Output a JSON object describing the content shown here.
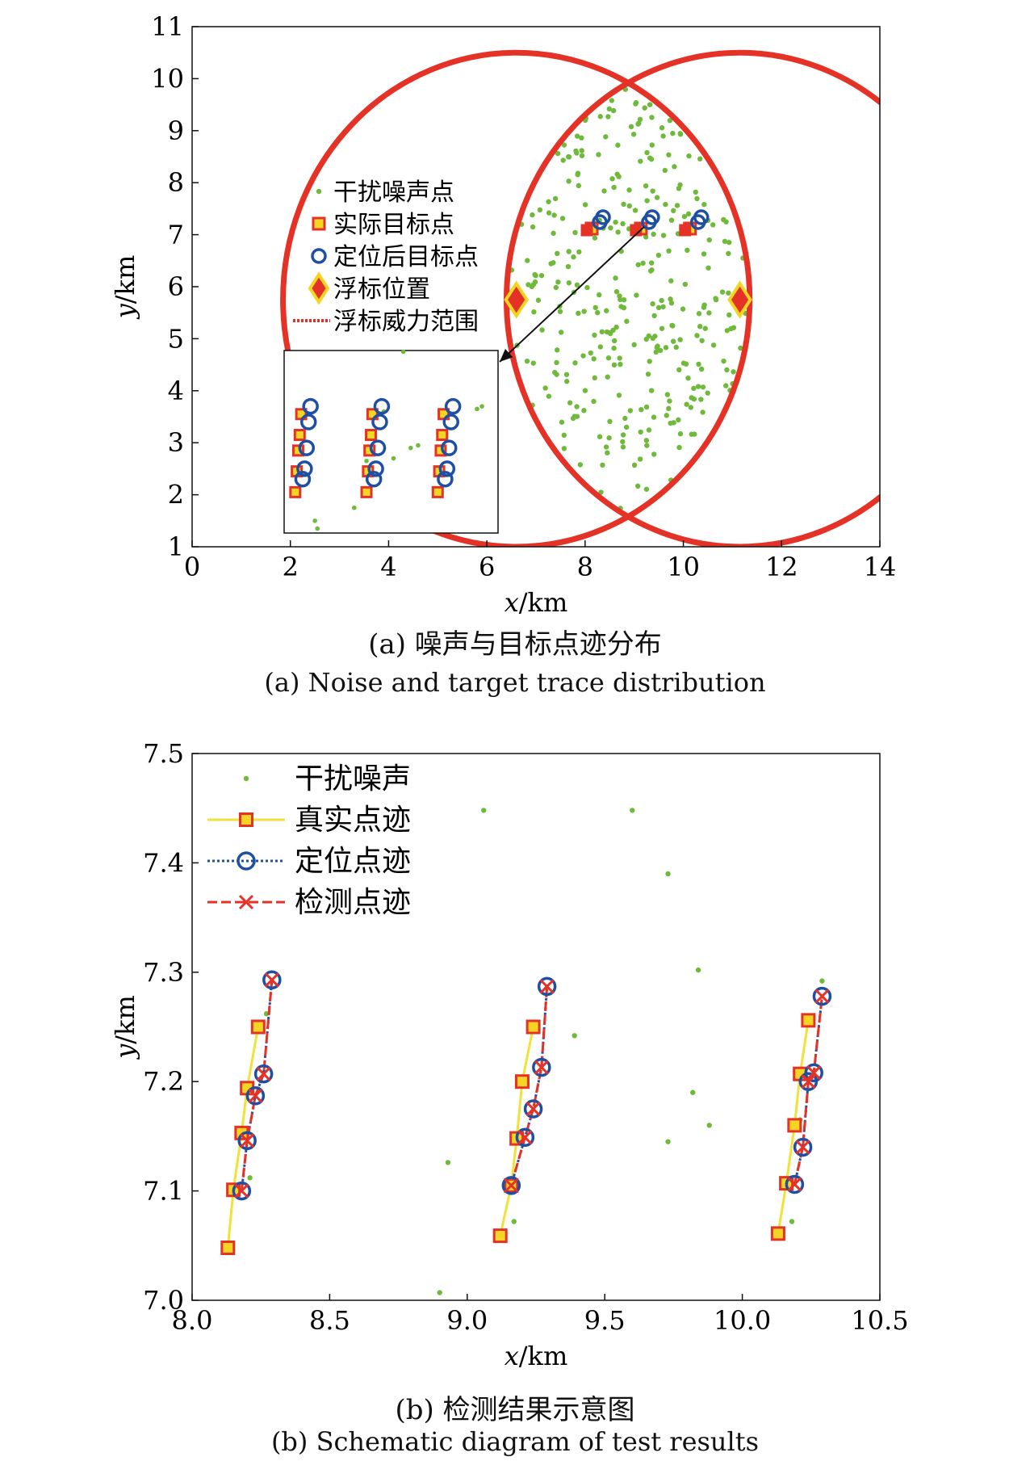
{
  "chart_data": [
    {
      "type": "scatter",
      "caption_cn": "(a) 噪声与目标点迹分布",
      "caption_en": "(a) Noise and target trace distribution",
      "xlabel": "x/km",
      "ylabel": "y/km",
      "xlim": [
        0,
        14
      ],
      "ylim": [
        1,
        11
      ],
      "xticks": [
        "0",
        "2",
        "4",
        "6",
        "8",
        "10",
        "12",
        "14"
      ],
      "yticks": [
        "1",
        "2",
        "3",
        "4",
        "5",
        "6",
        "7",
        "8",
        "9",
        "10",
        "11"
      ],
      "legend_placement": "upper-left-inside",
      "legend": [
        "干扰噪声点",
        "实际目标点",
        "定位后目标点",
        "浮标位置",
        "浮标威力范围"
      ],
      "colors": {
        "noise": "#6fba3a",
        "actual": "#e53227",
        "actual_fill": "#f5d523",
        "located": "#1f4fa3",
        "buoy": "#e53227",
        "buoy_fill": "#f5d523",
        "range": "#e53227"
      },
      "buoys": [
        {
          "x": 6.6,
          "y": 5.75
        },
        {
          "x": 11.15,
          "y": 5.75
        }
      ],
      "range_circles": [
        {
          "cx": 6.6,
          "cy": 5.75,
          "r": 4.75
        },
        {
          "cx": 11.15,
          "cy": 5.75,
          "r": 4.75
        }
      ],
      "target_groups": [
        {
          "x": 8.2,
          "y": 7.18
        },
        {
          "x": 9.2,
          "y": 7.18
        },
        {
          "x": 10.2,
          "y": 7.18
        }
      ],
      "inset": {
        "xlim": [
          1.9,
          6.3
        ],
        "ylim": [
          1.2,
          4.8
        ],
        "arrow_from": [
          9.2,
          7.15
        ],
        "arrow_to": [
          6.3,
          4.8
        ]
      }
    },
    {
      "type": "scatter",
      "caption_cn": "(b) 检测结果示意图",
      "caption_en": "(b) Schematic diagram of test results",
      "xlabel": "x/km",
      "ylabel": "y/km",
      "xlim": [
        8.0,
        10.5
      ],
      "ylim": [
        7.0,
        7.5
      ],
      "xticks": [
        "8.0",
        "8.5",
        "9.0",
        "9.5",
        "10.0",
        "10.5"
      ],
      "yticks": [
        "7.0",
        "7.1",
        "7.2",
        "7.3",
        "7.4",
        "7.5"
      ],
      "legend_placement": "upper-left-inside",
      "legend": [
        "干扰噪声",
        "真实点迹",
        "定位点迹",
        "检测点迹"
      ],
      "colors": {
        "noise": "#6fba3a",
        "true_line": "#f0e23a",
        "true_marker": "#e53227",
        "true_fill": "#f5d523",
        "located": "#1f4fa3",
        "detected": "#e53227"
      },
      "series": [
        {
          "name": "真实点迹",
          "groups": [
            [
              [
                8.13,
                7.048
              ],
              [
                8.15,
                7.101
              ],
              [
                8.18,
                7.153
              ],
              [
                8.2,
                7.194
              ],
              [
                8.24,
                7.25
              ]
            ],
            [
              [
                9.12,
                7.059
              ],
              [
                9.16,
                7.105
              ],
              [
                9.18,
                7.148
              ],
              [
                9.2,
                7.2
              ],
              [
                9.24,
                7.25
              ]
            ],
            [
              [
                10.13,
                7.061
              ],
              [
                10.16,
                7.107
              ],
              [
                10.19,
                7.16
              ],
              [
                10.21,
                7.207
              ],
              [
                10.24,
                7.256
              ]
            ]
          ]
        },
        {
          "name": "定位点迹",
          "groups": [
            [
              [
                8.18,
                7.1
              ],
              [
                8.2,
                7.146
              ],
              [
                8.23,
                7.187
              ],
              [
                8.26,
                7.207
              ],
              [
                8.29,
                7.293
              ]
            ],
            [
              [
                9.16,
                7.105
              ],
              [
                9.21,
                7.149
              ],
              [
                9.24,
                7.175
              ],
              [
                9.27,
                7.213
              ],
              [
                9.29,
                7.287
              ]
            ],
            [
              [
                10.19,
                7.106
              ],
              [
                10.22,
                7.14
              ],
              [
                10.24,
                7.2
              ],
              [
                10.26,
                7.208
              ],
              [
                10.29,
                7.278
              ]
            ]
          ]
        },
        {
          "name": "检测点迹",
          "groups": [
            [
              [
                8.18,
                7.1
              ],
              [
                8.2,
                7.146
              ],
              [
                8.23,
                7.187
              ],
              [
                8.26,
                7.207
              ],
              [
                8.29,
                7.293
              ]
            ],
            [
              [
                9.16,
                7.105
              ],
              [
                9.21,
                7.149
              ],
              [
                9.24,
                7.175
              ],
              [
                9.27,
                7.213
              ],
              [
                9.29,
                7.287
              ]
            ],
            [
              [
                10.19,
                7.106
              ],
              [
                10.22,
                7.14
              ],
              [
                10.24,
                7.2
              ],
              [
                10.26,
                7.208
              ],
              [
                10.29,
                7.278
              ]
            ]
          ]
        }
      ],
      "noise_points": [
        [
          9.06,
          7.448
        ],
        [
          9.6,
          7.448
        ],
        [
          9.73,
          7.39
        ],
        [
          9.84,
          7.302
        ],
        [
          9.39,
          7.242
        ],
        [
          9.82,
          7.19
        ],
        [
          9.88,
          7.16
        ],
        [
          9.73,
          7.145
        ],
        [
          8.93,
          7.126
        ],
        [
          8.9,
          7.007
        ],
        [
          10.29,
          7.292
        ],
        [
          8.21,
          7.112
        ],
        [
          9.17,
          7.072
        ],
        [
          10.18,
          7.072
        ],
        [
          8.27,
          7.262
        ],
        [
          10.21,
          7.165
        ]
      ]
    }
  ]
}
